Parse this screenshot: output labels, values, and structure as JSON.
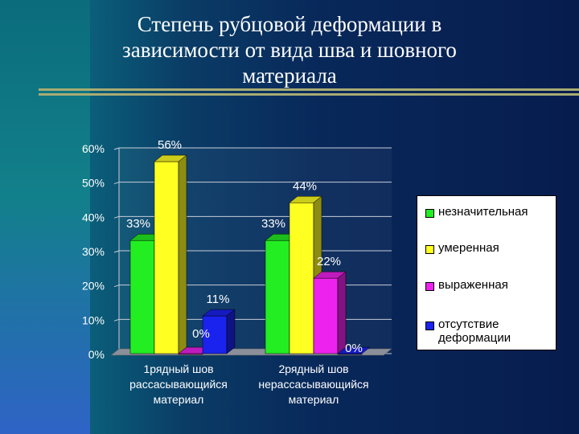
{
  "title": "Степень рубцовой деформации в зависимости от вида шва и шовного материала",
  "colors": {
    "background": "#0a2a5e",
    "accent_rule": "#a8ab72",
    "series": [
      "#22ee22",
      "#ffff22",
      "#ee22ee",
      "#1a22ee"
    ]
  },
  "chart_data": {
    "type": "bar",
    "style": "3d-clustered",
    "categories": [
      "1рядный шов рассасывающийся материал",
      "2рядный шов нерассасывающийся материал"
    ],
    "category_lines": [
      [
        "1рядный шов",
        "рассасывающийся",
        "материал"
      ],
      [
        "2рядный шов",
        "нерассасывающийся",
        "материал"
      ]
    ],
    "series": [
      {
        "name": "незначительная",
        "values": [
          33,
          33
        ],
        "labels": [
          "33%",
          "33%"
        ]
      },
      {
        "name": "умеренная",
        "values": [
          56,
          44
        ],
        "labels": [
          "56%",
          "44%"
        ]
      },
      {
        "name": "выраженная",
        "values": [
          0,
          22
        ],
        "labels": [
          "",
          "22%"
        ]
      },
      {
        "name": "отсутствие деформации",
        "values": [
          11,
          0
        ],
        "labels": [
          "11%",
          "0%"
        ],
        "extra_labels": [
          "0%",
          ""
        ]
      }
    ],
    "y_ticks": [
      "0%",
      "10%",
      "20%",
      "30%",
      "40%",
      "50%",
      "60%"
    ],
    "ylim": [
      0,
      60
    ],
    "grid": true,
    "legend_position": "right"
  },
  "legend": {
    "items": [
      {
        "label": "незначительная"
      },
      {
        "label": "умеренная"
      },
      {
        "label": "выраженная"
      },
      {
        "label": "отсутствие\nдеформации"
      }
    ]
  }
}
